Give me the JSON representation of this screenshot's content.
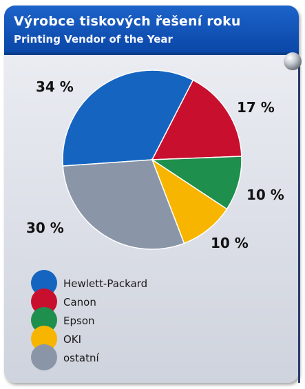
{
  "header": {
    "title_cz": "Výrobce tiskových řešení roku",
    "title_en": "Printing Vendor of the Year"
  },
  "chart_data": {
    "type": "pie",
    "title": "Výrobce tiskových řešení roku",
    "subtitle": "Printing Vendor of the Year",
    "slices": [
      {
        "name": "Hewlett-Packard",
        "value": 34,
        "label": "34 %",
        "color": "#1565c0"
      },
      {
        "name": "Canon",
        "value": 17,
        "label": "17 %",
        "color": "#c8102e"
      },
      {
        "name": "Epson",
        "value": 10,
        "label": "10 %",
        "color": "#1f8f4e"
      },
      {
        "name": "OKI",
        "value": 10,
        "label": "10 %",
        "color": "#f7b500"
      },
      {
        "name": "ostatní",
        "value": 30,
        "label": "30 %",
        "color": "#8a96a8"
      }
    ],
    "legend_position": "bottom-left"
  }
}
